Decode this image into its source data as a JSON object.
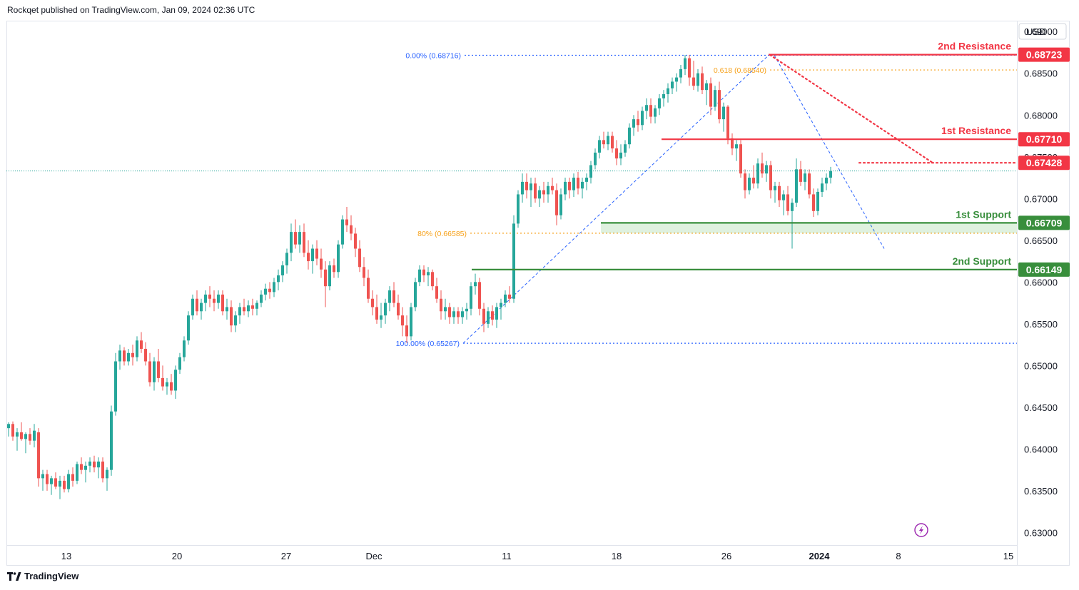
{
  "header": {
    "published_text": "Rockqet published on TradingView.com, Jan 09, 2024 02:36 UTC"
  },
  "footer": {
    "brand": "TradingView"
  },
  "axis": {
    "currency": "USD"
  },
  "colors": {
    "up": "#26a69a",
    "down": "#ef5350",
    "resistance": "#f23645",
    "support": "#388e3c",
    "fib_blue": "#2962ff",
    "fib_orange": "#f7a21b",
    "grid": "#d1d4dc",
    "text": "#131722"
  },
  "chart_data": {
    "type": "candlestick",
    "symbol_quote": "USD",
    "ylim": [
      0.6285,
      0.6913
    ],
    "y_ticks": [
      "0.69000",
      "0.68500",
      "0.68000",
      "0.67500",
      "0.67000",
      "0.66500",
      "0.66000",
      "0.65500",
      "0.65000",
      "0.64500",
      "0.64000",
      "0.63500",
      "0.63000"
    ],
    "x_ticks": [
      {
        "label": "13",
        "bold": false
      },
      {
        "label": "20",
        "bold": false
      },
      {
        "label": "27",
        "bold": false
      },
      {
        "label": "Dec",
        "bold": false
      },
      {
        "label": "11",
        "bold": false
      },
      {
        "label": "18",
        "bold": false
      },
      {
        "label": "26",
        "bold": false
      },
      {
        "label": "2024",
        "bold": true
      },
      {
        "label": "8",
        "bold": false
      },
      {
        "label": "15",
        "bold": false
      }
    ],
    "levels": [
      {
        "name": "2nd Resistance",
        "price": 0.68723,
        "value_label": "0.68723",
        "kind": "resistance"
      },
      {
        "name": "1st Resistance",
        "price": 0.6771,
        "value_label": "0.67710",
        "kind": "resistance"
      },
      {
        "name": "1st Support",
        "price": 0.66709,
        "value_label": "0.66709",
        "kind": "support"
      },
      {
        "name": "2nd Support",
        "price": 0.66149,
        "value_label": "0.66149",
        "kind": "support"
      }
    ],
    "current_price": {
      "price": 0.67428,
      "value_label": "0.67428"
    },
    "last_close": 0.6733,
    "fib_levels": [
      {
        "label": "0.00% (0.68716)",
        "price": 0.68716,
        "color": "blue"
      },
      {
        "label": "0.618 (0.68540)",
        "price": 0.6854,
        "color": "orange"
      },
      {
        "label": "80% (0.66585)",
        "price": 0.66585,
        "color": "orange"
      },
      {
        "label": "100.00% (0.65267)",
        "price": 0.65267,
        "color": "blue"
      }
    ],
    "candles": [
      [
        0.6425,
        0.6432,
        0.6415,
        0.643
      ],
      [
        0.643,
        0.6433,
        0.641,
        0.6415
      ],
      [
        0.6415,
        0.6425,
        0.6398,
        0.642
      ],
      [
        0.642,
        0.6432,
        0.641,
        0.6412
      ],
      [
        0.6412,
        0.642,
        0.6395,
        0.6418
      ],
      [
        0.6418,
        0.6425,
        0.6405,
        0.641
      ],
      [
        0.641,
        0.643,
        0.6402,
        0.6422
      ],
      [
        0.642,
        0.6425,
        0.6355,
        0.6365
      ],
      [
        0.6365,
        0.6375,
        0.635,
        0.637
      ],
      [
        0.637,
        0.6375,
        0.635,
        0.6358
      ],
      [
        0.6358,
        0.6368,
        0.6345,
        0.6365
      ],
      [
        0.6365,
        0.6372,
        0.6352,
        0.6355
      ],
      [
        0.6355,
        0.6368,
        0.634,
        0.6362
      ],
      [
        0.6362,
        0.6368,
        0.6348,
        0.6352
      ],
      [
        0.6352,
        0.6375,
        0.6348,
        0.637
      ],
      [
        0.637,
        0.6378,
        0.6355,
        0.6362
      ],
      [
        0.6362,
        0.6385,
        0.6358,
        0.6382
      ],
      [
        0.6382,
        0.639,
        0.637,
        0.6375
      ],
      [
        0.6375,
        0.6385,
        0.636,
        0.638
      ],
      [
        0.638,
        0.639,
        0.6372,
        0.6385
      ],
      [
        0.6385,
        0.6392,
        0.6372,
        0.6378
      ],
      [
        0.6378,
        0.639,
        0.6365,
        0.6385
      ],
      [
        0.6385,
        0.639,
        0.636,
        0.6365
      ],
      [
        0.6365,
        0.6378,
        0.635,
        0.6375
      ],
      [
        0.6375,
        0.6452,
        0.6368,
        0.6445
      ],
      [
        0.6445,
        0.6515,
        0.644,
        0.6505
      ],
      [
        0.6505,
        0.6525,
        0.6495,
        0.6518
      ],
      [
        0.6518,
        0.6522,
        0.65,
        0.6505
      ],
      [
        0.6505,
        0.652,
        0.65,
        0.6515
      ],
      [
        0.6515,
        0.6525,
        0.65,
        0.651
      ],
      [
        0.651,
        0.6535,
        0.6505,
        0.653
      ],
      [
        0.653,
        0.654,
        0.6515,
        0.652
      ],
      [
        0.652,
        0.6528,
        0.65,
        0.6505
      ],
      [
        0.6505,
        0.6515,
        0.6475,
        0.648
      ],
      [
        0.648,
        0.651,
        0.647,
        0.6505
      ],
      [
        0.6505,
        0.652,
        0.648,
        0.6485
      ],
      [
        0.6485,
        0.65,
        0.647,
        0.6475
      ],
      [
        0.6475,
        0.6485,
        0.6465,
        0.648
      ],
      [
        0.648,
        0.649,
        0.6465,
        0.647
      ],
      [
        0.647,
        0.65,
        0.646,
        0.6495
      ],
      [
        0.6495,
        0.6515,
        0.649,
        0.651
      ],
      [
        0.651,
        0.6535,
        0.6505,
        0.653
      ],
      [
        0.653,
        0.6565,
        0.6525,
        0.656
      ],
      [
        0.656,
        0.6585,
        0.6555,
        0.658
      ],
      [
        0.658,
        0.659,
        0.656,
        0.6565
      ],
      [
        0.6565,
        0.658,
        0.6555,
        0.6575
      ],
      [
        0.6575,
        0.659,
        0.6565,
        0.6585
      ],
      [
        0.6585,
        0.6595,
        0.657,
        0.658
      ],
      [
        0.658,
        0.659,
        0.6565,
        0.6575
      ],
      [
        0.6575,
        0.659,
        0.6568,
        0.6585
      ],
      [
        0.6585,
        0.659,
        0.656,
        0.6565
      ],
      [
        0.6565,
        0.658,
        0.6555,
        0.657
      ],
      [
        0.657,
        0.6578,
        0.654,
        0.6548
      ],
      [
        0.6548,
        0.6565,
        0.654,
        0.656
      ],
      [
        0.656,
        0.6575,
        0.655,
        0.657
      ],
      [
        0.657,
        0.658,
        0.656,
        0.6565
      ],
      [
        0.6565,
        0.6578,
        0.6558,
        0.6572
      ],
      [
        0.6572,
        0.658,
        0.656,
        0.6568
      ],
      [
        0.6568,
        0.6578,
        0.656,
        0.6575
      ],
      [
        0.6575,
        0.659,
        0.657,
        0.6585
      ],
      [
        0.6585,
        0.6598,
        0.6578,
        0.6592
      ],
      [
        0.6592,
        0.66,
        0.658,
        0.6588
      ],
      [
        0.6588,
        0.6605,
        0.6582,
        0.66
      ],
      [
        0.66,
        0.6615,
        0.659,
        0.6608
      ],
      [
        0.6608,
        0.6625,
        0.66,
        0.662
      ],
      [
        0.662,
        0.664,
        0.661,
        0.6635
      ],
      [
        0.6635,
        0.667,
        0.6625,
        0.666
      ],
      [
        0.666,
        0.6675,
        0.664,
        0.6645
      ],
      [
        0.6645,
        0.6668,
        0.6635,
        0.666
      ],
      [
        0.666,
        0.667,
        0.663,
        0.6635
      ],
      [
        0.6635,
        0.665,
        0.6615,
        0.6625
      ],
      [
        0.6625,
        0.6645,
        0.661,
        0.664
      ],
      [
        0.664,
        0.665,
        0.662,
        0.6628
      ],
      [
        0.6628,
        0.664,
        0.6605,
        0.6615
      ],
      [
        0.6615,
        0.6625,
        0.657,
        0.6595
      ],
      [
        0.6595,
        0.6625,
        0.659,
        0.662
      ],
      [
        0.662,
        0.6628,
        0.6605,
        0.6612
      ],
      [
        0.6612,
        0.665,
        0.6605,
        0.6645
      ],
      [
        0.6645,
        0.668,
        0.664,
        0.6675
      ],
      [
        0.6675,
        0.669,
        0.666,
        0.6668
      ],
      [
        0.6668,
        0.668,
        0.665,
        0.6658
      ],
      [
        0.6658,
        0.6665,
        0.663,
        0.664
      ],
      [
        0.664,
        0.665,
        0.6612,
        0.6618
      ],
      [
        0.6618,
        0.663,
        0.6595,
        0.6605
      ],
      [
        0.6605,
        0.6615,
        0.6575,
        0.658
      ],
      [
        0.658,
        0.659,
        0.656,
        0.657
      ],
      [
        0.657,
        0.6585,
        0.655,
        0.6555
      ],
      [
        0.6555,
        0.6575,
        0.6545,
        0.656
      ],
      [
        0.656,
        0.658,
        0.655,
        0.6575
      ],
      [
        0.6575,
        0.6595,
        0.6565,
        0.659
      ],
      [
        0.659,
        0.66,
        0.657,
        0.6575
      ],
      [
        0.6575,
        0.6585,
        0.6555,
        0.656
      ],
      [
        0.656,
        0.657,
        0.6535,
        0.6548
      ],
      [
        0.6548,
        0.656,
        0.6527,
        0.6535
      ],
      [
        0.6535,
        0.6575,
        0.653,
        0.657
      ],
      [
        0.657,
        0.6605,
        0.6565,
        0.66
      ],
      [
        0.66,
        0.662,
        0.6595,
        0.6615
      ],
      [
        0.6615,
        0.662,
        0.66,
        0.6608
      ],
      [
        0.6608,
        0.6618,
        0.6595,
        0.6612
      ],
      [
        0.6612,
        0.6615,
        0.659,
        0.6595
      ],
      [
        0.6595,
        0.6605,
        0.6575,
        0.658
      ],
      [
        0.658,
        0.659,
        0.6555,
        0.6565
      ],
      [
        0.6565,
        0.658,
        0.6555,
        0.657
      ],
      [
        0.657,
        0.6575,
        0.655,
        0.6558
      ],
      [
        0.6558,
        0.657,
        0.655,
        0.6565
      ],
      [
        0.6565,
        0.657,
        0.655,
        0.6558
      ],
      [
        0.6558,
        0.657,
        0.655,
        0.6565
      ],
      [
        0.6565,
        0.6575,
        0.6555,
        0.6568
      ],
      [
        0.6568,
        0.66,
        0.656,
        0.6595
      ],
      [
        0.6595,
        0.661,
        0.6585,
        0.66
      ],
      [
        0.66,
        0.6605,
        0.656,
        0.6568
      ],
      [
        0.6568,
        0.6575,
        0.654,
        0.655
      ],
      [
        0.655,
        0.657,
        0.6545,
        0.6565
      ],
      [
        0.6565,
        0.6572,
        0.6548,
        0.6555
      ],
      [
        0.6555,
        0.6575,
        0.6545,
        0.657
      ],
      [
        0.657,
        0.658,
        0.6555,
        0.6575
      ],
      [
        0.6575,
        0.659,
        0.657,
        0.6585
      ],
      [
        0.6585,
        0.6595,
        0.6575,
        0.658
      ],
      [
        0.658,
        0.668,
        0.6575,
        0.667
      ],
      [
        0.667,
        0.671,
        0.6665,
        0.6705
      ],
      [
        0.6705,
        0.673,
        0.6695,
        0.672
      ],
      [
        0.672,
        0.673,
        0.67,
        0.671
      ],
      [
        0.671,
        0.6725,
        0.669,
        0.6718
      ],
      [
        0.6718,
        0.6725,
        0.6695,
        0.67
      ],
      [
        0.67,
        0.6715,
        0.669,
        0.671
      ],
      [
        0.671,
        0.672,
        0.6695,
        0.6705
      ],
      [
        0.6705,
        0.672,
        0.6695,
        0.6715
      ],
      [
        0.6715,
        0.6725,
        0.6705,
        0.671
      ],
      [
        0.671,
        0.6718,
        0.6668,
        0.668
      ],
      [
        0.668,
        0.6712,
        0.6675,
        0.6705
      ],
      [
        0.6705,
        0.6725,
        0.6698,
        0.672
      ],
      [
        0.672,
        0.6725,
        0.67,
        0.671
      ],
      [
        0.671,
        0.673,
        0.6702,
        0.6725
      ],
      [
        0.6725,
        0.6732,
        0.6705,
        0.6712
      ],
      [
        0.6712,
        0.6725,
        0.67,
        0.672
      ],
      [
        0.672,
        0.673,
        0.671,
        0.6725
      ],
      [
        0.6725,
        0.6745,
        0.6718,
        0.674
      ],
      [
        0.674,
        0.676,
        0.6735,
        0.6755
      ],
      [
        0.6755,
        0.6775,
        0.6748,
        0.677
      ],
      [
        0.677,
        0.678,
        0.676,
        0.6765
      ],
      [
        0.6765,
        0.678,
        0.6758,
        0.6775
      ],
      [
        0.6775,
        0.678,
        0.6755,
        0.676
      ],
      [
        0.676,
        0.677,
        0.674,
        0.6748
      ],
      [
        0.6748,
        0.6765,
        0.674,
        0.6755
      ],
      [
        0.6755,
        0.677,
        0.675,
        0.6765
      ],
      [
        0.6765,
        0.679,
        0.676,
        0.6785
      ],
      [
        0.6785,
        0.68,
        0.6775,
        0.6795
      ],
      [
        0.6795,
        0.6805,
        0.678,
        0.6788
      ],
      [
        0.6788,
        0.681,
        0.6782,
        0.6805
      ],
      [
        0.6805,
        0.682,
        0.6795,
        0.6812
      ],
      [
        0.6812,
        0.682,
        0.679,
        0.6798
      ],
      [
        0.6798,
        0.6812,
        0.679,
        0.6808
      ],
      [
        0.6808,
        0.6825,
        0.68,
        0.682
      ],
      [
        0.682,
        0.683,
        0.681,
        0.6825
      ],
      [
        0.6825,
        0.6838,
        0.6815,
        0.6832
      ],
      [
        0.6832,
        0.6845,
        0.6825,
        0.684
      ],
      [
        0.684,
        0.685,
        0.6828,
        0.6845
      ],
      [
        0.6845,
        0.686,
        0.6838,
        0.6855
      ],
      [
        0.6855,
        0.6872,
        0.6848,
        0.6868
      ],
      [
        0.6868,
        0.6872,
        0.6835,
        0.6845
      ],
      [
        0.6845,
        0.6865,
        0.683,
        0.6835
      ],
      [
        0.6835,
        0.6855,
        0.6828,
        0.685
      ],
      [
        0.685,
        0.6858,
        0.6825,
        0.683
      ],
      [
        0.683,
        0.6842,
        0.6812,
        0.6838
      ],
      [
        0.6838,
        0.6845,
        0.68,
        0.681
      ],
      [
        0.681,
        0.6835,
        0.6805,
        0.683
      ],
      [
        0.683,
        0.684,
        0.679,
        0.6795
      ],
      [
        0.6795,
        0.6815,
        0.678,
        0.681
      ],
      [
        0.681,
        0.6812,
        0.6765,
        0.6772
      ],
      [
        0.6772,
        0.6778,
        0.6752,
        0.676
      ],
      [
        0.676,
        0.677,
        0.6745,
        0.6765
      ],
      [
        0.6765,
        0.677,
        0.6725,
        0.673
      ],
      [
        0.673,
        0.6735,
        0.67,
        0.671
      ],
      [
        0.671,
        0.673,
        0.6705,
        0.6725
      ],
      [
        0.6725,
        0.674,
        0.6712,
        0.6718
      ],
      [
        0.6718,
        0.6748,
        0.6712,
        0.6742
      ],
      [
        0.6742,
        0.6755,
        0.6725,
        0.673
      ],
      [
        0.673,
        0.6745,
        0.672,
        0.674
      ],
      [
        0.674,
        0.6745,
        0.67,
        0.671
      ],
      [
        0.671,
        0.672,
        0.6695,
        0.6715
      ],
      [
        0.6715,
        0.672,
        0.669,
        0.6698
      ],
      [
        0.6698,
        0.671,
        0.668,
        0.6705
      ],
      [
        0.6705,
        0.6715,
        0.668,
        0.6685
      ],
      [
        0.6685,
        0.67,
        0.664,
        0.6695
      ],
      [
        0.6695,
        0.6748,
        0.669,
        0.6735
      ],
      [
        0.6735,
        0.6745,
        0.6715,
        0.672
      ],
      [
        0.672,
        0.6735,
        0.671,
        0.673
      ],
      [
        0.673,
        0.6735,
        0.67,
        0.6705
      ],
      [
        0.6705,
        0.6712,
        0.6678,
        0.6685
      ],
      [
        0.6685,
        0.6712,
        0.668,
        0.6708
      ],
      [
        0.6708,
        0.6725,
        0.6702,
        0.6718
      ],
      [
        0.6718,
        0.673,
        0.671,
        0.6725
      ],
      [
        0.6725,
        0.6738,
        0.6718,
        0.6733
      ]
    ]
  },
  "badge": {
    "icon": "lightning-icon"
  }
}
